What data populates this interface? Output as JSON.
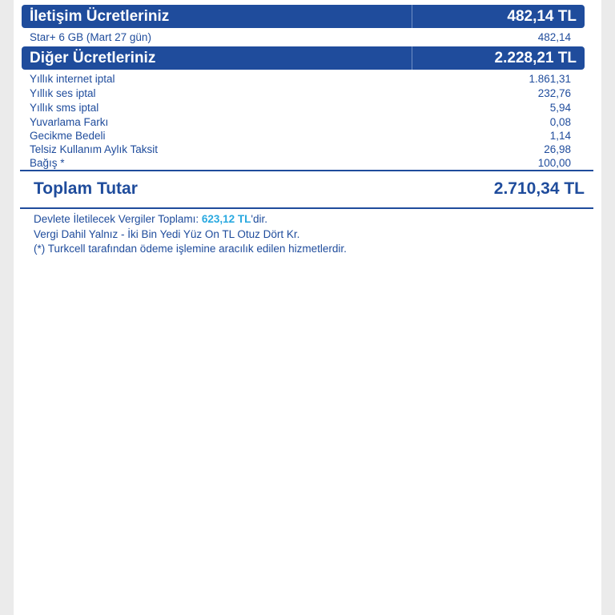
{
  "communication": {
    "title": "İletişim Ücretleriniz",
    "amount": "482,14 TL",
    "items": [
      {
        "label": "Star+ 6 GB (Mart 27 gün)",
        "value": "482,14"
      }
    ]
  },
  "other": {
    "title": "Diğer Ücretleriniz",
    "amount": "2.228,21 TL",
    "items": [
      {
        "label": "Yıllık internet iptal",
        "value": "1.861,31"
      },
      {
        "label": "Yıllık ses iptal",
        "value": "232,76"
      },
      {
        "label": "Yıllık sms iptal",
        "value": "5,94"
      },
      {
        "label": "Yuvarlama Farkı",
        "value": "0,08"
      },
      {
        "label": "Gecikme Bedeli",
        "value": "1,14"
      },
      {
        "label": "Telsiz Kullanım Aylık Taksit",
        "value": "26,98"
      },
      {
        "label": "Bağış *",
        "value": "100,00"
      }
    ]
  },
  "total": {
    "label": "Toplam Tutar",
    "amount": "2.710,34 TL"
  },
  "notes": {
    "tax_prefix": "Devlete İletilecek Vergiler Toplamı: ",
    "tax_amount": "623,12 TL",
    "tax_suffix": "'dir.",
    "amount_in_words": "Vergi Dahil Yalnız - İki Bin Yedi Yüz On TL Otuz Dört Kr.",
    "footnote": "(*) Turkcell tarafından ödeme işlemine aracılık edilen hizmetlerdir."
  },
  "colors": {
    "header_bg": "#1f4c9c",
    "text": "#1f4c9c",
    "tax_highlight": "#29a9e0",
    "page_bg": "#ffffff",
    "outer_bg": "#ebebeb"
  }
}
